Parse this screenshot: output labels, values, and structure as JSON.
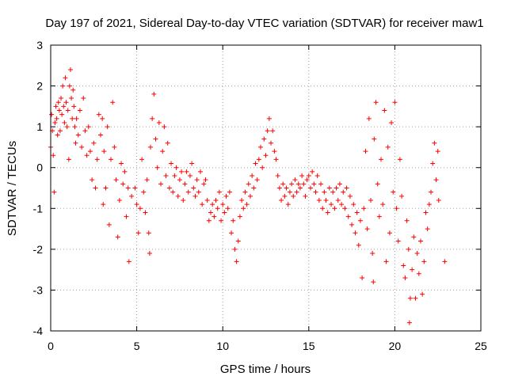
{
  "chart_data": {
    "type": "scatter",
    "title": "Day 197 of 2021, Sidereal Day-to-day VTEC variation (SDTVAR) for receiver maw1",
    "xlabel": "GPS time / hours",
    "ylabel": "SDTVAR / TECUs",
    "xlim": [
      0,
      25
    ],
    "ylim": [
      -4,
      3
    ],
    "xticks": [
      "0",
      "5",
      "10",
      "15",
      "20",
      "25"
    ],
    "yticks": [
      "-4",
      "-3",
      "-2",
      "-1",
      "0",
      "1",
      "2",
      "3"
    ],
    "grid": true,
    "marker": "+",
    "series_color": "#ff0000",
    "series": [
      {
        "name": "SDTVAR",
        "points": [
          [
            0.0,
            0.5
          ],
          [
            0.05,
            1.3
          ],
          [
            0.1,
            0.9
          ],
          [
            0.15,
            0.3
          ],
          [
            0.2,
            -0.6
          ],
          [
            0.25,
            1.1
          ],
          [
            0.3,
            1.5
          ],
          [
            0.35,
            1.2
          ],
          [
            0.4,
            0.8
          ],
          [
            0.45,
            1.6
          ],
          [
            0.5,
            1.4
          ],
          [
            0.55,
            0.9
          ],
          [
            0.6,
            1.7
          ],
          [
            0.65,
            1.3
          ],
          [
            0.7,
            2.0
          ],
          [
            0.75,
            1.5
          ],
          [
            0.8,
            1.1
          ],
          [
            0.85,
            2.2
          ],
          [
            0.9,
            1.6
          ],
          [
            0.95,
            1.0
          ],
          [
            1.0,
            1.4
          ],
          [
            1.05,
            0.2
          ],
          [
            1.1,
            2.0
          ],
          [
            1.15,
            2.4
          ],
          [
            1.2,
            1.7
          ],
          [
            1.25,
            1.2
          ],
          [
            1.3,
            1.9
          ],
          [
            1.35,
            1.5
          ],
          [
            1.4,
            1.0
          ],
          [
            1.45,
            0.6
          ],
          [
            1.5,
            1.2
          ],
          [
            1.6,
            0.8
          ],
          [
            1.7,
            1.4
          ],
          [
            1.8,
            0.5
          ],
          [
            1.9,
            1.7
          ],
          [
            2.0,
            0.9
          ],
          [
            2.1,
            0.3
          ],
          [
            2.2,
            1.0
          ],
          [
            2.3,
            0.4
          ],
          [
            2.4,
            -0.3
          ],
          [
            2.5,
            0.6
          ],
          [
            2.6,
            -0.5
          ],
          [
            2.7,
            0.2
          ],
          [
            2.8,
            1.3
          ],
          [
            2.9,
            0.8
          ],
          [
            3.0,
            1.2
          ],
          [
            3.05,
            -0.9
          ],
          [
            3.1,
            0.4
          ],
          [
            3.2,
            -0.5
          ],
          [
            3.3,
            1.0
          ],
          [
            3.4,
            -1.4
          ],
          [
            3.5,
            0.2
          ],
          [
            3.6,
            1.6
          ],
          [
            3.7,
            0.5
          ],
          [
            3.8,
            -0.3
          ],
          [
            3.9,
            -1.7
          ],
          [
            4.0,
            -0.8
          ],
          [
            4.1,
            0.1
          ],
          [
            4.2,
            -0.4
          ],
          [
            4.3,
            -0.1
          ],
          [
            4.4,
            -1.2
          ],
          [
            4.5,
            -0.5
          ],
          [
            4.55,
            -2.3
          ],
          [
            4.7,
            -0.7
          ],
          [
            4.9,
            -0.5
          ],
          [
            5.0,
            -0.9
          ],
          [
            5.1,
            -1.6
          ],
          [
            5.2,
            -1.0
          ],
          [
            5.3,
            0.2
          ],
          [
            5.4,
            -0.6
          ],
          [
            5.5,
            -1.1
          ],
          [
            5.6,
            -0.3
          ],
          [
            5.7,
            -1.6
          ],
          [
            5.75,
            -2.1
          ],
          [
            5.8,
            0.5
          ],
          [
            5.9,
            1.2
          ],
          [
            6.0,
            1.8
          ],
          [
            6.1,
            0.7
          ],
          [
            6.2,
            0.0
          ],
          [
            6.3,
            1.1
          ],
          [
            6.4,
            -0.4
          ],
          [
            6.5,
            0.4
          ],
          [
            6.6,
            1.0
          ],
          [
            6.7,
            -0.2
          ],
          [
            6.8,
            0.6
          ],
          [
            6.9,
            -0.5
          ],
          [
            7.0,
            0.1
          ],
          [
            7.1,
            -0.6
          ],
          [
            7.2,
            -0.2
          ],
          [
            7.3,
            0.0
          ],
          [
            7.4,
            -0.7
          ],
          [
            7.5,
            -0.3
          ],
          [
            7.6,
            -0.1
          ],
          [
            7.7,
            -0.8
          ],
          [
            7.8,
            -0.4
          ],
          [
            7.9,
            -0.1
          ],
          [
            8.0,
            -0.6
          ],
          [
            8.1,
            -0.2
          ],
          [
            8.2,
            0.1
          ],
          [
            8.3,
            -0.5
          ],
          [
            8.4,
            -0.7
          ],
          [
            8.5,
            -0.3
          ],
          [
            8.6,
            -0.6
          ],
          [
            8.7,
            -0.1
          ],
          [
            8.8,
            -0.9
          ],
          [
            8.9,
            -0.4
          ],
          [
            9.0,
            -0.3
          ],
          [
            9.1,
            -0.8
          ],
          [
            9.2,
            -1.3
          ],
          [
            9.3,
            -1.1
          ],
          [
            9.4,
            -0.9
          ],
          [
            9.5,
            -1.2
          ],
          [
            9.6,
            -0.8
          ],
          [
            9.7,
            -1.0
          ],
          [
            9.8,
            -0.6
          ],
          [
            9.9,
            -1.3
          ],
          [
            10.0,
            -0.9
          ],
          [
            10.1,
            -1.1
          ],
          [
            10.2,
            -0.7
          ],
          [
            10.3,
            -1.0
          ],
          [
            10.4,
            -0.6
          ],
          [
            10.5,
            -1.6
          ],
          [
            10.6,
            -1.3
          ],
          [
            10.7,
            -2.0
          ],
          [
            10.8,
            -2.3
          ],
          [
            10.9,
            -1.8
          ],
          [
            11.0,
            -1.2
          ],
          [
            11.1,
            -0.8
          ],
          [
            11.2,
            -1.0
          ],
          [
            11.3,
            -0.6
          ],
          [
            11.4,
            -0.9
          ],
          [
            11.5,
            -0.4
          ],
          [
            11.6,
            -0.7
          ],
          [
            11.7,
            -0.2
          ],
          [
            11.8,
            -0.5
          ],
          [
            11.9,
            0.1
          ],
          [
            12.0,
            -0.3
          ],
          [
            12.1,
            0.2
          ],
          [
            12.2,
            0.5
          ],
          [
            12.3,
            0.0
          ],
          [
            12.4,
            0.7
          ],
          [
            12.5,
            0.3
          ],
          [
            12.6,
            0.9
          ],
          [
            12.7,
            1.2
          ],
          [
            12.8,
            0.6
          ],
          [
            12.9,
            0.9
          ],
          [
            13.0,
            0.4
          ],
          [
            13.1,
            0.2
          ],
          [
            13.2,
            -0.2
          ],
          [
            13.3,
            -0.5
          ],
          [
            13.4,
            -0.8
          ],
          [
            13.5,
            -0.4
          ],
          [
            13.6,
            -0.7
          ],
          [
            13.7,
            -0.5
          ],
          [
            13.8,
            -0.9
          ],
          [
            13.9,
            -0.6
          ],
          [
            14.0,
            -0.4
          ],
          [
            14.1,
            -0.7
          ],
          [
            14.2,
            -0.3
          ],
          [
            14.3,
            -0.6
          ],
          [
            14.4,
            -0.4
          ],
          [
            14.5,
            -0.5
          ],
          [
            14.6,
            -0.2
          ],
          [
            14.7,
            -0.4
          ],
          [
            14.8,
            -0.7
          ],
          [
            14.9,
            -0.3
          ],
          [
            15.0,
            -0.2
          ],
          [
            15.1,
            -0.5
          ],
          [
            15.2,
            -0.1
          ],
          [
            15.3,
            -0.4
          ],
          [
            15.4,
            -0.6
          ],
          [
            15.5,
            -0.2
          ],
          [
            15.6,
            -0.8
          ],
          [
            15.7,
            -0.4
          ],
          [
            15.8,
            -1.0
          ],
          [
            15.9,
            -0.6
          ],
          [
            16.0,
            -0.8
          ],
          [
            16.1,
            -1.1
          ],
          [
            16.2,
            -0.5
          ],
          [
            16.3,
            -0.9
          ],
          [
            16.4,
            -0.6
          ],
          [
            16.5,
            -1.0
          ],
          [
            16.6,
            -0.5
          ],
          [
            16.7,
            -0.8
          ],
          [
            16.8,
            -0.4
          ],
          [
            16.9,
            -0.9
          ],
          [
            17.0,
            -0.6
          ],
          [
            17.1,
            -1.0
          ],
          [
            17.2,
            -0.5
          ],
          [
            17.3,
            -1.2
          ],
          [
            17.4,
            -0.7
          ],
          [
            17.5,
            -1.4
          ],
          [
            17.6,
            -0.9
          ],
          [
            17.7,
            -1.6
          ],
          [
            17.8,
            -1.1
          ],
          [
            17.9,
            -1.9
          ],
          [
            18.0,
            -1.3
          ],
          [
            18.1,
            -2.7
          ],
          [
            18.2,
            -1.0
          ],
          [
            18.3,
            0.4
          ],
          [
            18.4,
            -1.5
          ],
          [
            18.5,
            1.2
          ],
          [
            18.6,
            -0.8
          ],
          [
            18.7,
            -2.1
          ],
          [
            18.75,
            -2.8
          ],
          [
            18.8,
            0.7
          ],
          [
            18.9,
            1.6
          ],
          [
            19.0,
            -0.4
          ],
          [
            19.1,
            -1.2
          ],
          [
            19.2,
            0.2
          ],
          [
            19.3,
            -0.9
          ],
          [
            19.4,
            1.4
          ],
          [
            19.5,
            -2.3
          ],
          [
            19.6,
            0.5
          ],
          [
            19.7,
            -1.6
          ],
          [
            19.8,
            1.1
          ],
          [
            19.9,
            -0.6
          ],
          [
            20.0,
            1.6
          ],
          [
            20.1,
            -1.0
          ],
          [
            20.2,
            -1.8
          ],
          [
            20.3,
            0.2
          ],
          [
            20.4,
            -0.7
          ],
          [
            20.5,
            -2.4
          ],
          [
            20.6,
            -2.7
          ],
          [
            20.7,
            -1.3
          ],
          [
            20.8,
            -2.0
          ],
          [
            20.85,
            -3.8
          ],
          [
            20.9,
            -3.2
          ],
          [
            21.0,
            -2.5
          ],
          [
            21.1,
            -1.7
          ],
          [
            21.2,
            -3.2
          ],
          [
            21.3,
            -2.1
          ],
          [
            21.4,
            -2.6
          ],
          [
            21.5,
            -1.8
          ],
          [
            21.6,
            -3.1
          ],
          [
            21.7,
            -2.3
          ],
          [
            21.8,
            -1.1
          ],
          [
            21.9,
            -1.5
          ],
          [
            22.0,
            -0.9
          ],
          [
            22.1,
            -0.6
          ],
          [
            22.2,
            0.1
          ],
          [
            22.3,
            0.6
          ],
          [
            22.4,
            -0.3
          ],
          [
            22.5,
            0.4
          ],
          [
            22.55,
            -0.8
          ],
          [
            22.9,
            -2.3
          ]
        ]
      }
    ]
  }
}
